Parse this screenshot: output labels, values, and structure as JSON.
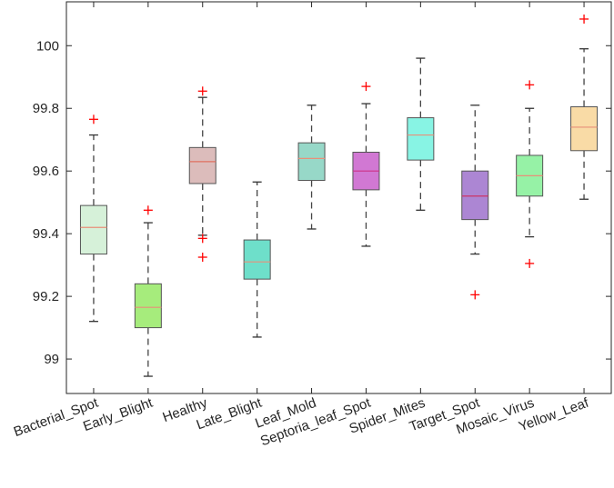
{
  "chart_data": {
    "type": "box",
    "title": "",
    "xlabel": "",
    "ylabel": "",
    "ylim": [
      98.89,
      100.14
    ],
    "yticks": [
      99,
      99.2,
      99.4,
      99.6,
      99.8,
      100
    ],
    "ytick_labels": [
      "99",
      "99.2",
      "99.4",
      "99.6",
      "99.8",
      "100"
    ],
    "categories": [
      "Bacterial_Spot",
      "Early_Blight",
      "Healthy",
      "Late_Blight",
      "Leaf_Mold",
      "Septoria_leaf_Spot",
      "Spider_Mites",
      "Target_Spot",
      "Mosaic_Virus",
      "Yellow_Leaf"
    ],
    "boxes": [
      {
        "whisker_low": 99.12,
        "q1": 99.335,
        "median": 99.42,
        "q3": 99.49,
        "whisker_high": 99.715,
        "outliers": [
          99.765
        ],
        "fill": "#d6f1d9",
        "median_color": "#e8907a"
      },
      {
        "whisker_low": 98.945,
        "q1": 99.1,
        "median": 99.165,
        "q3": 99.24,
        "whisker_high": 99.435,
        "outliers": [
          99.475
        ],
        "fill": "#a6ec7c",
        "median_color": "#e8907a"
      },
      {
        "whisker_low": 99.395,
        "q1": 99.56,
        "median": 99.63,
        "q3": 99.675,
        "whisker_high": 99.835,
        "outliers": [
          99.855,
          99.385,
          99.325
        ],
        "fill": "#dcbcbb",
        "median_color": "#e07060"
      },
      {
        "whisker_low": 99.07,
        "q1": 99.255,
        "median": 99.31,
        "q3": 99.38,
        "whisker_high": 99.565,
        "outliers": [],
        "fill": "#6edfca",
        "median_color": "#e8907a"
      },
      {
        "whisker_low": 99.415,
        "q1": 99.57,
        "median": 99.64,
        "q3": 99.69,
        "whisker_high": 99.81,
        "outliers": [],
        "fill": "#97d8c8",
        "median_color": "#e8907a"
      },
      {
        "whisker_low": 99.36,
        "q1": 99.54,
        "median": 99.6,
        "q3": 99.66,
        "whisker_high": 99.815,
        "outliers": [
          99.87
        ],
        "fill": "#d178d3",
        "median_color": "#cc3388"
      },
      {
        "whisker_low": 99.475,
        "q1": 99.635,
        "median": 99.715,
        "q3": 99.77,
        "whisker_high": 99.96,
        "outliers": [],
        "fill": "#88f4e4",
        "median_color": "#e8907a"
      },
      {
        "whisker_low": 99.335,
        "q1": 99.445,
        "median": 99.52,
        "q3": 99.6,
        "whisker_high": 99.81,
        "outliers": [
          99.205
        ],
        "fill": "#ac86d3",
        "median_color": "#cc3366"
      },
      {
        "whisker_low": 99.39,
        "q1": 99.52,
        "median": 99.585,
        "q3": 99.65,
        "whisker_high": 99.8,
        "outliers": [
          99.875,
          99.305
        ],
        "fill": "#96f2a6",
        "median_color": "#e8907a"
      },
      {
        "whisker_low": 99.51,
        "q1": 99.665,
        "median": 99.74,
        "q3": 99.805,
        "whisker_high": 99.99,
        "outliers": [
          100.085
        ],
        "fill": "#f9dba6",
        "median_color": "#e8907a"
      }
    ],
    "outlier_color": "#ff0000",
    "grid": false
  }
}
